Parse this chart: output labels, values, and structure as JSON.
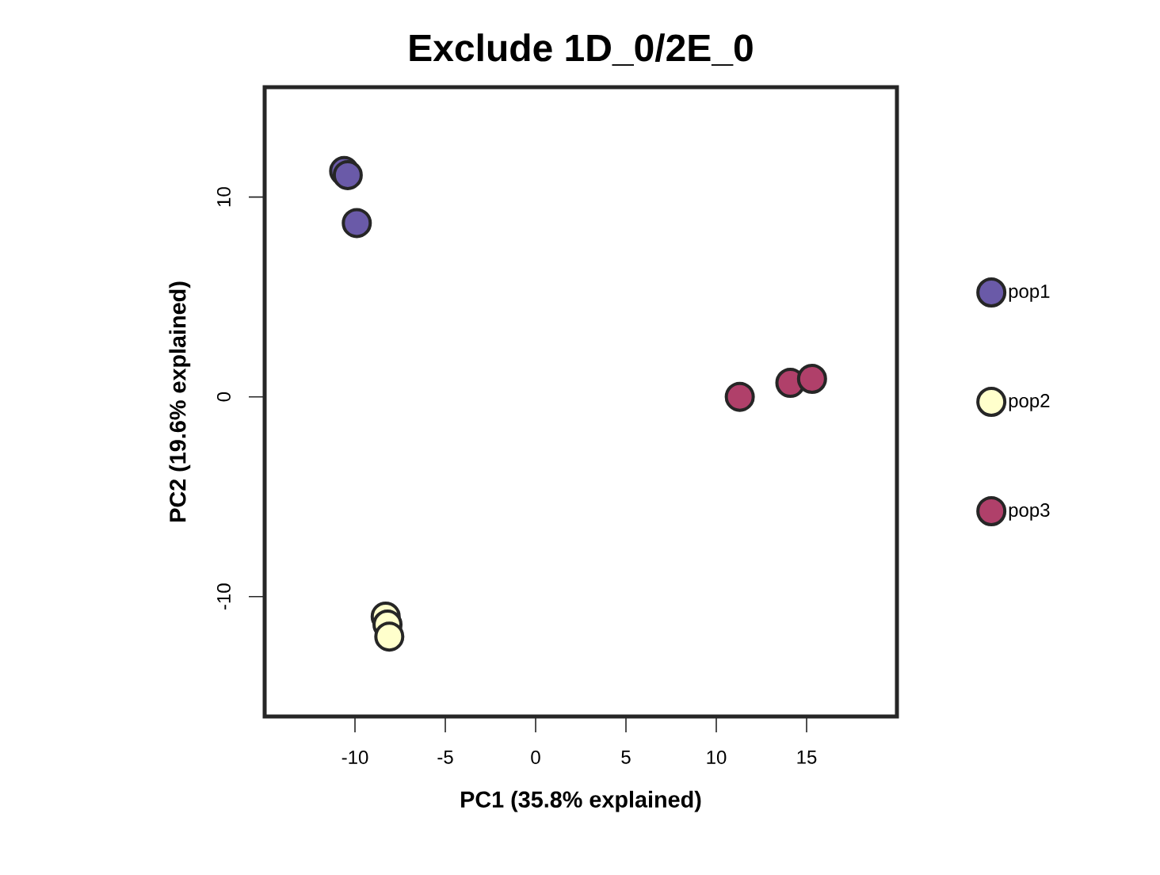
{
  "chart_data": {
    "type": "scatter",
    "title": "Exclude 1D_0/2E_0",
    "xlabel": "PC1 (35.8% explained)",
    "ylabel": "PC2 (19.6% explained)",
    "xlim": [
      -15,
      20
    ],
    "ylim": [
      -16,
      15.5
    ],
    "xticks": [
      -10,
      -5,
      0,
      5,
      10,
      15
    ],
    "yticks": [
      -10,
      0,
      10
    ],
    "grid": false,
    "legend": "right",
    "marker": "circle",
    "series": [
      {
        "name": "pop1",
        "color": "#6a5aa8",
        "x": [
          -10.6,
          -10.4,
          -9.9
        ],
        "values": [
          11.3,
          11.1,
          8.7
        ]
      },
      {
        "name": "pop2",
        "color": "#ffffcc",
        "x": [
          -8.3,
          -8.2,
          -8.1
        ],
        "values": [
          -11.0,
          -11.4,
          -12.0
        ]
      },
      {
        "name": "pop3",
        "color": "#b0406a",
        "x": [
          11.3,
          14.1,
          15.3
        ],
        "values": [
          0.0,
          0.7,
          0.9
        ]
      }
    ]
  }
}
